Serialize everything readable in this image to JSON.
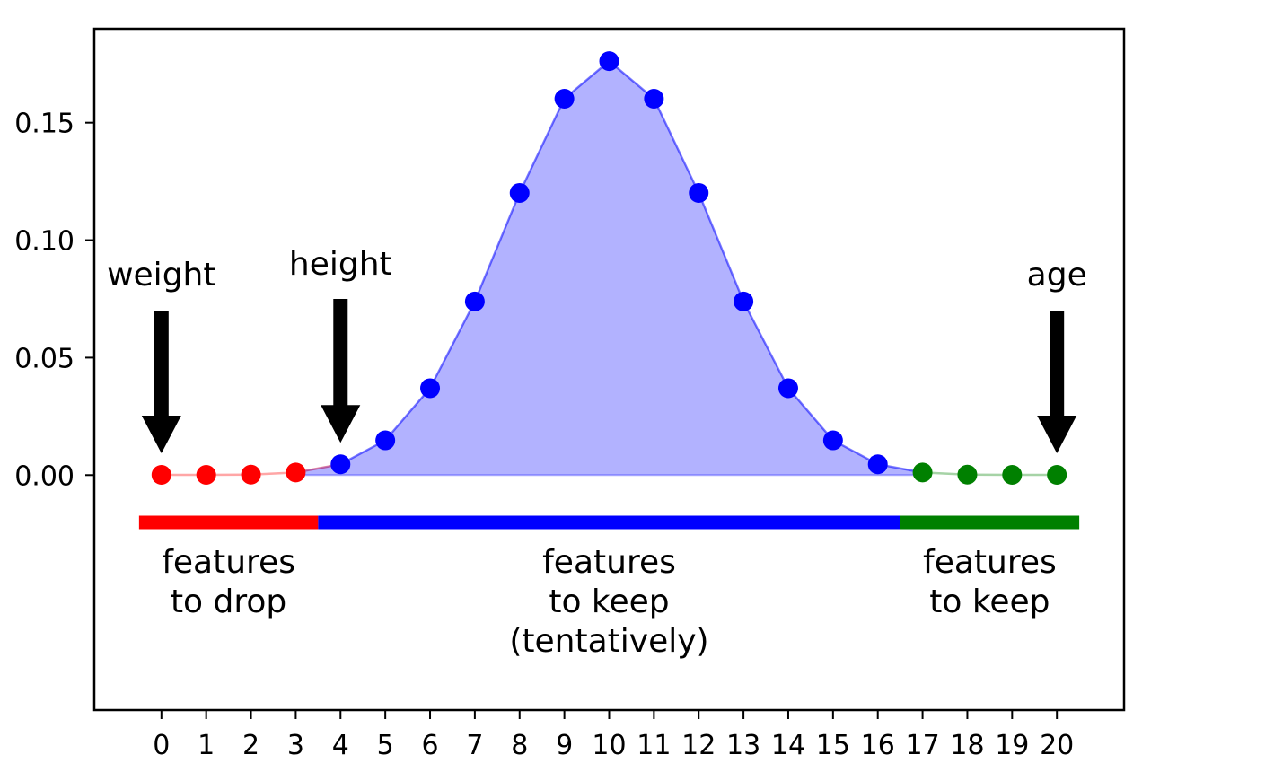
{
  "chart_data": {
    "type": "scatter",
    "x": [
      0,
      1,
      2,
      3,
      4,
      5,
      6,
      7,
      8,
      9,
      10,
      11,
      12,
      13,
      14,
      15,
      16,
      17,
      18,
      19,
      20
    ],
    "values": [
      0.0001,
      0.0001,
      0.0002,
      0.0011,
      0.0046,
      0.0148,
      0.037,
      0.0739,
      0.1201,
      0.1602,
      0.1762,
      0.1602,
      0.1201,
      0.0739,
      0.037,
      0.0148,
      0.0046,
      0.0011,
      0.0002,
      0.0001,
      0.0001
    ],
    "xlim": [
      -1.5,
      21.5
    ],
    "ylim": [
      -0.1,
      0.19
    ],
    "y_ticks": [
      "0.00",
      "0.05",
      "0.10",
      "0.15"
    ],
    "y_tick_values": [
      0,
      0.05,
      0.1,
      0.15
    ],
    "x_ticks": [
      "0",
      "1",
      "2",
      "3",
      "4",
      "5",
      "6",
      "7",
      "8",
      "9",
      "10",
      "11",
      "12",
      "13",
      "14",
      "15",
      "16",
      "17",
      "18",
      "19",
      "20"
    ],
    "grid": false,
    "regions": [
      {
        "from": -0.5,
        "to": 3.5,
        "color": "#ff0000",
        "label_lines": [
          "features",
          "to drop"
        ]
      },
      {
        "from": 3.5,
        "to": 16.5,
        "color": "#0000ff",
        "label_lines": [
          "features",
          "to keep",
          "(tentatively)"
        ]
      },
      {
        "from": 16.5,
        "to": 20.5,
        "color": "#008000",
        "label_lines": [
          "features",
          "to keep"
        ]
      }
    ],
    "fill_color": "#0000ff",
    "annotations": [
      {
        "text": "weight",
        "x": 0
      },
      {
        "text": "height",
        "x": 4
      },
      {
        "text": "age",
        "x": 20
      }
    ]
  }
}
